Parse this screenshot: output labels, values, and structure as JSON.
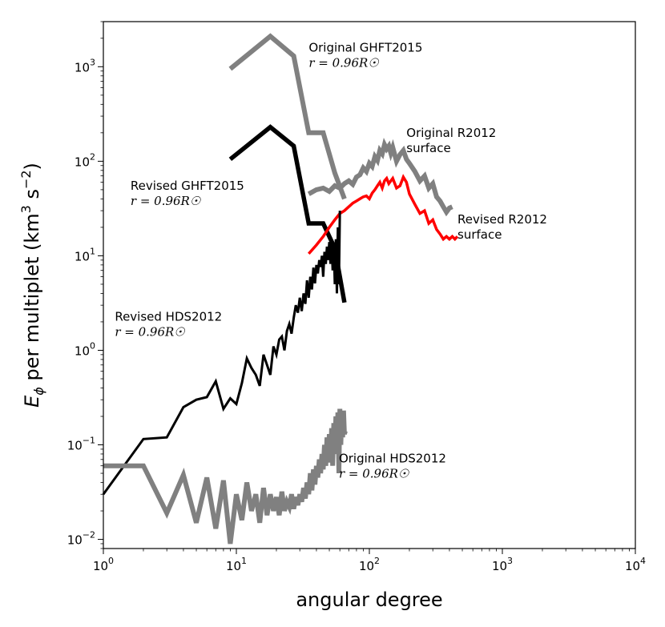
{
  "chart_data": {
    "type": "line",
    "title": "",
    "xlabel": "angular degree",
    "ylabel": "E_φ per multiplet (km³ s⁻²)",
    "ylabel_parts": {
      "main": "E",
      "sub": "ϕ",
      "mid": " per multiplet (km",
      "sup1": "3",
      "mid2": " s",
      "sup2": "−2",
      "end": ")"
    },
    "xscale": "log",
    "yscale": "log",
    "xlim": [
      1,
      10000
    ],
    "ylim": [
      0.008,
      3000
    ],
    "xticks": [
      {
        "value": 1,
        "base": "10",
        "exp": "0"
      },
      {
        "value": 10,
        "base": "10",
        "exp": "1"
      },
      {
        "value": 100,
        "base": "10",
        "exp": "2"
      },
      {
        "value": 1000,
        "base": "10",
        "exp": "3"
      },
      {
        "value": 10000,
        "base": "10",
        "exp": "4"
      }
    ],
    "yticks": [
      {
        "value": 0.01,
        "base": "10",
        "exp": "−2"
      },
      {
        "value": 0.1,
        "base": "10",
        "exp": "−1"
      },
      {
        "value": 1,
        "base": "10",
        "exp": "0"
      },
      {
        "value": 10,
        "base": "10",
        "exp": "1"
      },
      {
        "value": 100,
        "base": "10",
        "exp": "2"
      },
      {
        "value": 1000,
        "base": "10",
        "exp": "3"
      }
    ],
    "grid": false,
    "series": [
      {
        "name": "Original GHFT2015",
        "color": "#808080",
        "x": [
          9,
          18,
          27,
          35,
          45,
          55,
          65
        ],
        "y": [
          950,
          2100,
          1300,
          200,
          200,
          75,
          40
        ]
      },
      {
        "name": "Revised GHFT2015",
        "color": "#000000",
        "x": [
          9,
          18,
          27,
          35,
          45,
          55,
          65
        ],
        "y": [
          105,
          230,
          145,
          22,
          22,
          12,
          3.2
        ]
      },
      {
        "name": "Original R2012 surface",
        "color": "#808080",
        "x": [
          35,
          40,
          45,
          50,
          55,
          60,
          65,
          70,
          75,
          80,
          85,
          90,
          95,
          100,
          105,
          110,
          115,
          120,
          125,
          130,
          135,
          140,
          145,
          150,
          160,
          170,
          180,
          190,
          200,
          220,
          240,
          260,
          280,
          300,
          320,
          340,
          360,
          380,
          400,
          420
        ],
        "y": [
          45,
          50,
          52,
          48,
          55,
          52,
          58,
          62,
          57,
          68,
          72,
          85,
          78,
          95,
          88,
          112,
          102,
          130,
          120,
          150,
          135,
          145,
          122,
          140,
          100,
          118,
          130,
          105,
          95,
          78,
          62,
          70,
          52,
          58,
          42,
          38,
          33,
          29,
          32,
          33
        ]
      },
      {
        "name": "Revised R2012 surface",
        "color": "#ff0000",
        "x": [
          35,
          40,
          45,
          50,
          55,
          60,
          65,
          70,
          75,
          80,
          85,
          90,
          95,
          100,
          105,
          110,
          115,
          120,
          125,
          130,
          135,
          140,
          145,
          150,
          160,
          170,
          180,
          190,
          200,
          220,
          240,
          260,
          280,
          300,
          320,
          340,
          360,
          380,
          400,
          420,
          440,
          460
        ],
        "y": [
          10.5,
          13,
          16,
          20,
          24,
          28,
          30,
          33,
          36,
          38,
          40,
          42,
          43,
          40,
          46,
          50,
          55,
          60,
          52,
          62,
          66,
          58,
          62,
          66,
          52,
          55,
          68,
          60,
          45,
          35,
          28,
          30,
          22,
          24,
          19,
          17,
          15,
          16,
          15,
          16,
          15,
          16
        ]
      },
      {
        "name": "Revised HDS2012",
        "color": "#000000",
        "x": [
          1,
          2,
          3,
          4,
          5,
          6,
          7,
          8,
          9,
          10,
          11,
          12,
          13,
          14,
          15,
          16,
          17,
          18,
          19,
          20,
          21,
          22,
          23,
          24,
          25,
          26,
          27,
          28,
          29,
          30,
          31,
          32,
          33,
          34,
          35,
          36,
          37,
          38,
          39,
          40,
          41,
          42,
          43,
          44,
          45,
          46,
          47,
          48,
          49,
          50,
          51,
          52,
          53,
          54,
          55,
          56,
          57,
          58,
          59,
          60
        ],
        "y": [
          0.03,
          0.115,
          0.12,
          0.25,
          0.3,
          0.32,
          0.47,
          0.24,
          0.31,
          0.27,
          0.45,
          0.82,
          0.65,
          0.55,
          0.42,
          0.9,
          0.7,
          0.55,
          1.1,
          0.9,
          1.3,
          1.4,
          1.0,
          1.6,
          1.9,
          1.5,
          2.2,
          3.0,
          2.5,
          3.6,
          2.6,
          4.0,
          3.1,
          5.5,
          3.6,
          6.0,
          4.4,
          7.5,
          5.1,
          8.0,
          6.5,
          9.0,
          7.6,
          10.0,
          6.0,
          11.0,
          8.2,
          12.5,
          9.0,
          14.0,
          8.2,
          14.0,
          7.0,
          13.0,
          5.0,
          15.0,
          4.0,
          20.0,
          5.0,
          30.0
        ]
      },
      {
        "name": "Original HDS2012",
        "color": "#808080",
        "x": [
          1,
          2,
          3,
          4,
          5,
          6,
          7,
          8,
          9,
          10,
          11,
          12,
          13,
          14,
          15,
          16,
          17,
          18,
          19,
          20,
          21,
          22,
          23,
          24,
          25,
          26,
          27,
          28,
          29,
          30,
          31,
          32,
          33,
          34,
          35,
          36,
          37,
          38,
          39,
          40,
          41,
          42,
          43,
          44,
          45,
          46,
          47,
          48,
          49,
          50,
          51,
          52,
          53,
          54,
          55,
          56,
          57,
          58,
          59,
          60,
          61,
          62,
          63,
          64,
          65,
          66
        ],
        "y": [
          0.06,
          0.06,
          0.019,
          0.048,
          0.015,
          0.045,
          0.013,
          0.042,
          0.009,
          0.03,
          0.016,
          0.04,
          0.02,
          0.03,
          0.015,
          0.035,
          0.018,
          0.03,
          0.02,
          0.028,
          0.018,
          0.032,
          0.02,
          0.025,
          0.022,
          0.03,
          0.021,
          0.028,
          0.023,
          0.03,
          0.025,
          0.035,
          0.027,
          0.04,
          0.03,
          0.05,
          0.033,
          0.055,
          0.038,
          0.06,
          0.045,
          0.07,
          0.05,
          0.08,
          0.055,
          0.1,
          0.06,
          0.12,
          0.065,
          0.13,
          0.07,
          0.15,
          0.06,
          0.17,
          0.08,
          0.2,
          0.09,
          0.22,
          0.05,
          0.24,
          0.1,
          0.2,
          0.12,
          0.23,
          0.13,
          0.14
        ]
      }
    ],
    "annotations": [
      {
        "id": "orig-ghft",
        "line1": "Original GHFT2015",
        "line2": "r = 0.96R☉",
        "anchor_x": 35,
        "anchor_y": 1450
      },
      {
        "id": "orig-r2012",
        "line1": "Original R2012",
        "line2": "surface",
        "anchor_x": 190,
        "anchor_y": 180
      },
      {
        "id": "rev-ghft",
        "line1": "Revised GHFT2015",
        "line2": "r = 0.96R☉",
        "anchor_x": 1.6,
        "anchor_y": 50
      },
      {
        "id": "rev-r2012",
        "line1": "Revised R2012",
        "line2": "surface",
        "anchor_x": 460,
        "anchor_y": 22
      },
      {
        "id": "rev-hds",
        "line1": "Revised HDS2012",
        "line2": "r = 0.96R☉",
        "anchor_x": 1.22,
        "anchor_y": 2.05
      },
      {
        "id": "orig-hds",
        "line1": "Original HDS2012",
        "line2": "r = 0.96R☉",
        "anchor_x": 59,
        "anchor_y": 0.065
      }
    ]
  }
}
